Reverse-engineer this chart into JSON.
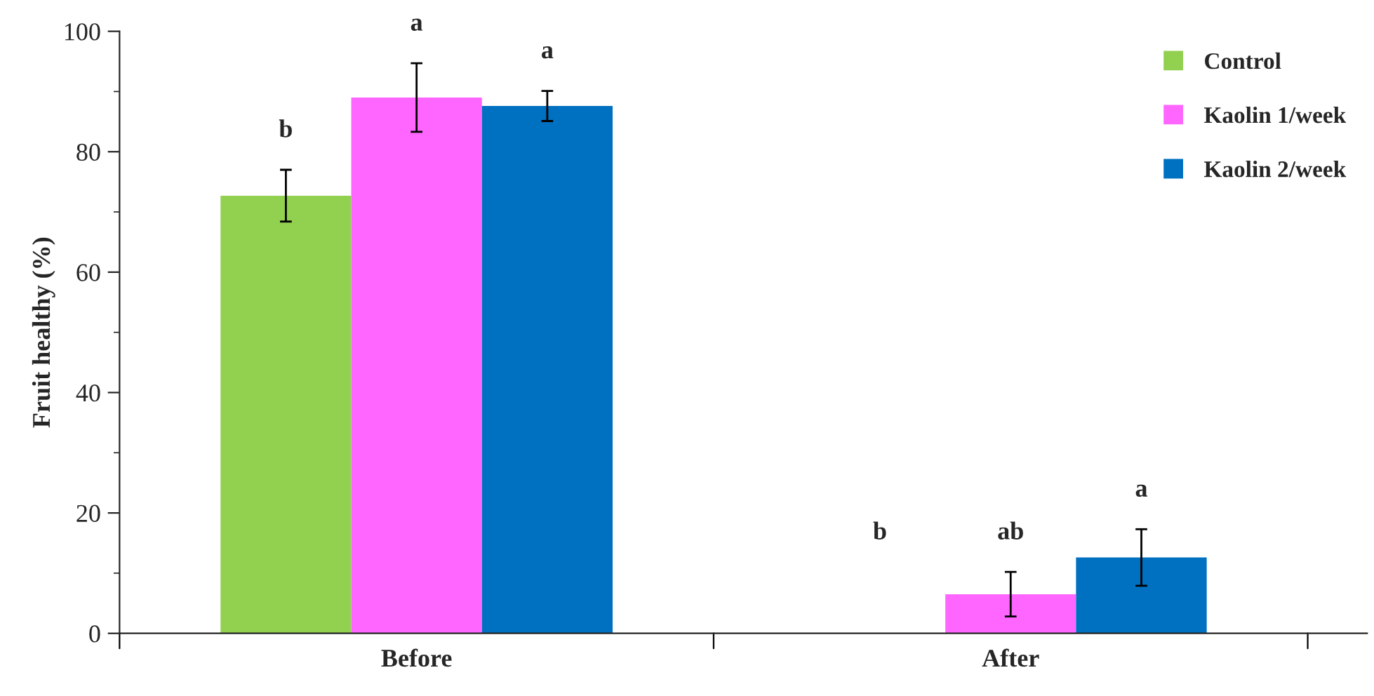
{
  "chart_data": {
    "type": "bar",
    "ylabel": "Fruit healthy (%)",
    "categories": [
      "Before",
      "After"
    ],
    "series": [
      {
        "name": "Control",
        "color": "#92d050",
        "values": [
          72.7,
          0
        ],
        "errors": [
          4.3,
          null
        ]
      },
      {
        "name": "Kaolin 1/week",
        "color": "#ff66ff",
        "values": [
          89.0,
          6.5
        ],
        "errors": [
          5.7,
          3.7
        ]
      },
      {
        "name": "Kaolin 2/week",
        "color": "#0070c0",
        "values": [
          87.6,
          12.6
        ],
        "errors": [
          2.5,
          4.7
        ]
      }
    ],
    "ylim": [
      0,
      100
    ],
    "yticks": [
      0,
      {
        "value": 10,
        "label": null
      },
      20,
      {
        "value": 30,
        "label": null
      },
      40,
      {
        "value": 50,
        "label": null
      },
      60,
      {
        "value": 70,
        "label": null
      },
      80,
      {
        "value": 90,
        "label": null
      },
      100
    ],
    "annotations": [
      "b",
      "a",
      "a",
      "b",
      "ab",
      "a"
    ],
    "legend": "top right",
    "grid": false
  }
}
